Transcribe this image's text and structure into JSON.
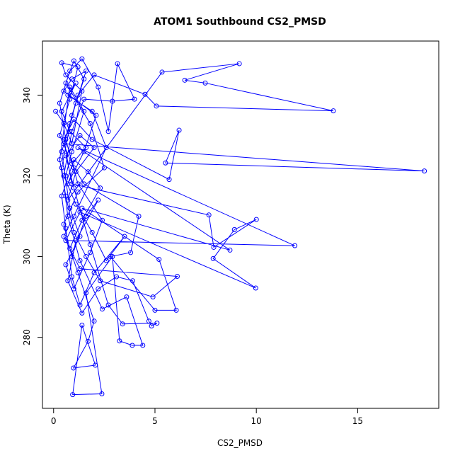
{
  "chart_data": {
    "type": "line",
    "title": "ATOM1 Southbound CS2_PMSD",
    "x_label": "CS2_PMSD",
    "y_label": "Theta (K)",
    "color": "#0000ff",
    "markers": true,
    "xlim": [
      -0.55,
      19.0
    ],
    "ylim": [
      262.4,
      353.4
    ],
    "xticks": [
      0,
      5,
      10,
      15
    ],
    "yticks": [
      280,
      300,
      320,
      340
    ],
    "x": [
      0.1,
      0.5,
      0.9,
      1.4,
      0.6,
      0.4,
      1.2,
      0.8,
      0.3,
      1.0,
      0.7,
      1.5,
      2.1,
      0.5,
      0.9,
      1.6,
      1.1,
      0.4,
      0.8,
      1.3,
      0.6,
      1.0,
      1.8,
      2.4,
      1.2,
      0.6,
      0.3,
      0.8,
      1.4,
      2.2,
      2.7,
      3.15,
      3.99,
      2.9,
      1.5,
      0.9,
      0.5,
      1.1,
      1.9,
      2.6,
      3.5,
      2.0,
      1.3,
      0.9,
      0.6,
      0.4,
      1.0,
      1.7,
      2.3,
      1.4,
      0.8,
      1.2,
      2.0,
      1.7,
      0.98,
      2.06,
      1.4,
      0.94,
      2.38,
      1.6,
      2.9,
      3.25,
      3.88,
      4.4,
      3.6,
      2.4,
      1.3,
      0.7,
      0.4,
      0.9,
      1.5,
      1.0,
      0.6,
      1.8,
      2.5,
      1.2,
      0.5,
      0.9,
      1.6,
      2.2,
      1.1,
      0.7,
      1.4,
      2.2,
      3.1,
      3.9,
      4.7,
      4.83,
      5.1,
      3.4,
      2.7,
      1.8,
      1.0,
      0.6,
      1.3,
      2.0,
      1.1,
      0.7,
      5.35,
      9.16,
      6.47,
      7.48,
      13.8,
      5.07,
      4.51,
      2.0,
      1.2,
      0.8,
      0.5,
      18.29,
      5.52,
      6.19,
      5.7,
      1.9,
      1.0,
      0.5,
      0.9,
      7.66,
      7.9,
      10.0,
      8.92,
      7.87,
      9.97,
      1.3,
      0.6,
      11.9,
      1.2,
      8.7,
      1.4,
      5.2,
      6.05,
      5.0,
      2.8,
      3.8,
      4.2,
      1.5,
      0.9,
      1.6,
      0.8,
      0.4,
      1.1,
      0.7,
      1.9,
      2.6,
      1.0,
      0.5,
      1.3,
      6.1,
      4.9,
      2.3,
      1.6,
      1.0,
      0.6,
      0.3,
      0.8,
      1.5,
      0.9,
      0.6
    ],
    "values": [
      336,
      333,
      328,
      341,
      345,
      348,
      347,
      339,
      330,
      322,
      318,
      326,
      335,
      341,
      344,
      346,
      338,
      326,
      312,
      305,
      298,
      292,
      301,
      309,
      318,
      329,
      338,
      346,
      349,
      342,
      331,
      347.8,
      339,
      338.5,
      339,
      331,
      320,
      313,
      306,
      299,
      305,
      296,
      288,
      295,
      307,
      315,
      324,
      321,
      317,
      309,
      302,
      296,
      284,
      279,
      272.4,
      273.1,
      283,
      265.8,
      266,
      291,
      300,
      279.1,
      278,
      278,
      290,
      287,
      299,
      310,
      322,
      335,
      344,
      348.5,
      343,
      333,
      322,
      316,
      308,
      300,
      310,
      314,
      304,
      294,
      286,
      292,
      295,
      294,
      284,
      282.8,
      283.5,
      283.3,
      288,
      303,
      317,
      325,
      330,
      327,
      321,
      314,
      345.7,
      347.8,
      343.7,
      343,
      336.1,
      337.3,
      340.2,
      345,
      340,
      333,
      328,
      321.2,
      323.2,
      331.3,
      319.1,
      329,
      334,
      329,
      318,
      310.3,
      302.3,
      309.2,
      306.7,
      299.5,
      292.2,
      311,
      304,
      302.7,
      327,
      301.6,
      312,
      299.3,
      286.7,
      286.7,
      300,
      301,
      310,
      318,
      323,
      327,
      331,
      336,
      343,
      340,
      336,
      327,
      310,
      305,
      297,
      295.1,
      290,
      294,
      300,
      306,
      315,
      324,
      342,
      336,
      326,
      320
    ]
  }
}
